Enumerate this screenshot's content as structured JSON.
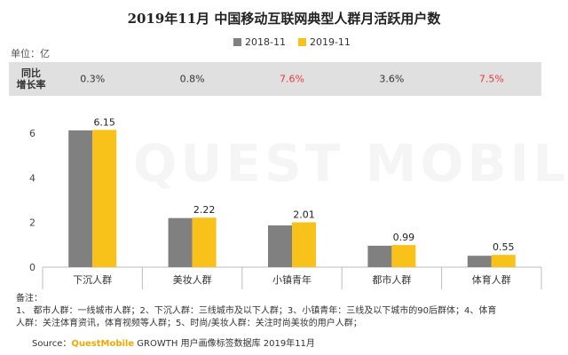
{
  "header": {
    "title": "2019年11月 中国移动互联网典型人群月活跃用户数",
    "unit": "单位：亿"
  },
  "growth": {
    "label_line1": "同比",
    "label_line2": "增长率",
    "values": [
      "0.3%",
      "0.8%",
      "7.6%",
      "3.6%",
      "7.5%"
    ],
    "colors": [
      "#333333",
      "#333333",
      "#e8393a",
      "#333333",
      "#e8393a"
    ]
  },
  "colors": {
    "series_2018": "#808080",
    "series_2019": "#f8c21a"
  },
  "chart_data": {
    "type": "bar",
    "categories": [
      "下沉人群",
      "美妆人群",
      "小镇青年",
      "都市人群",
      "体育人群"
    ],
    "series": [
      {
        "name": "2018-11",
        "values": [
          6.13,
          2.2,
          1.87,
          0.96,
          0.51
        ]
      },
      {
        "name": "2019-11",
        "values": [
          6.15,
          2.22,
          2.01,
          0.99,
          0.55
        ]
      }
    ],
    "data_labels": [
      "6.15",
      "2.22",
      "2.01",
      "0.99",
      "0.55"
    ],
    "y_ticks": [
      "0",
      "2",
      "4",
      "6"
    ],
    "ylim": [
      0,
      7.2
    ],
    "legend_position": "top-center"
  },
  "notes": {
    "heading": "备注：",
    "line1": "1、 都市人群：一线城市人群；2、下沉人群：三线城市及以下人群；3、小镇青年：三线及以下城市的90后群体；4、体育",
    "line2": "人群：关注体育资讯，体育视频等人群；5、时尚/美妆人群：关注时尚美妆的用户人群；"
  },
  "source": {
    "prefix": "Source：",
    "brand": "QuestMobile",
    "rest": " GROWTH 用户画像标签数据库  2019年11月"
  },
  "watermark": "QUEST MOBILE"
}
